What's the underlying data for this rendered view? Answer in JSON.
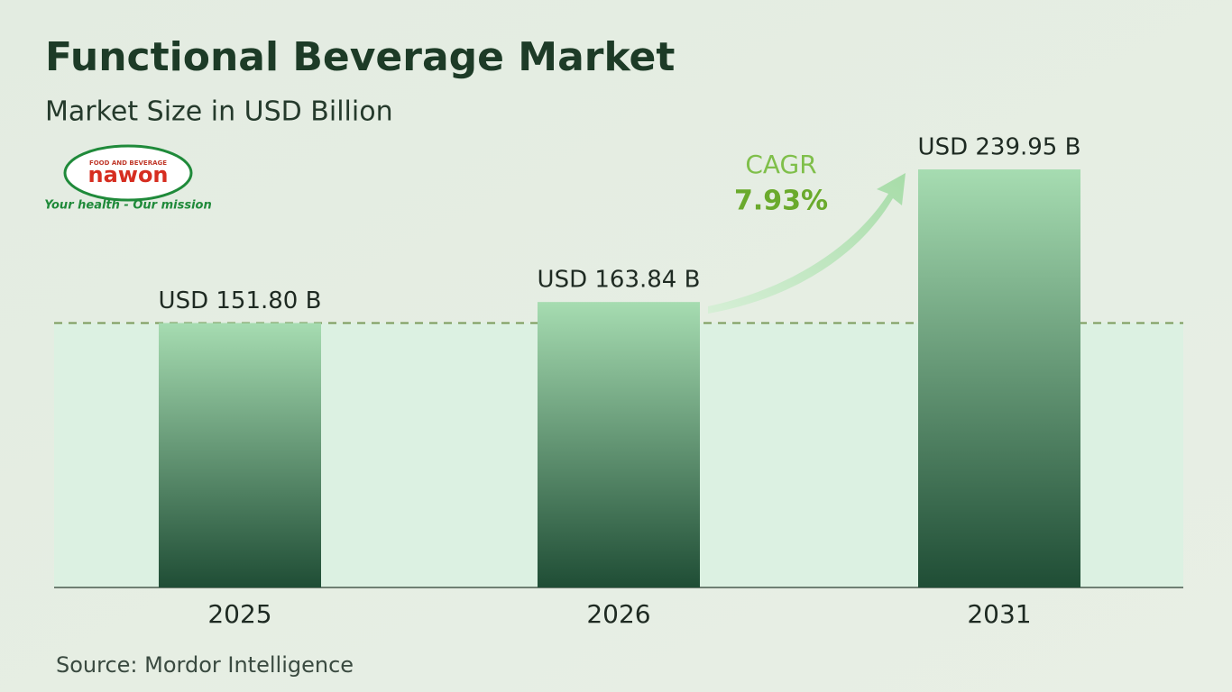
{
  "chart_data": {
    "type": "bar",
    "title": "Functional Beverage Market",
    "subtitle": "Market Size in USD Billion",
    "categories": [
      "2025",
      "2026",
      "2031"
    ],
    "values": [
      151.8,
      163.84,
      239.95
    ],
    "value_labels": [
      "USD 151.80 B",
      "USD 163.84 B",
      "USD 239.95 B"
    ],
    "color": "#1f4d35",
    "annotation_label": "CAGR",
    "annotation_value": "7.93%",
    "source": "Source:  Mordor Intelligence"
  },
  "logo": {
    "tagline_top": "FOOD AND BEVERAGE",
    "name": "nawon",
    "slogan": "Your health - Our mission"
  }
}
